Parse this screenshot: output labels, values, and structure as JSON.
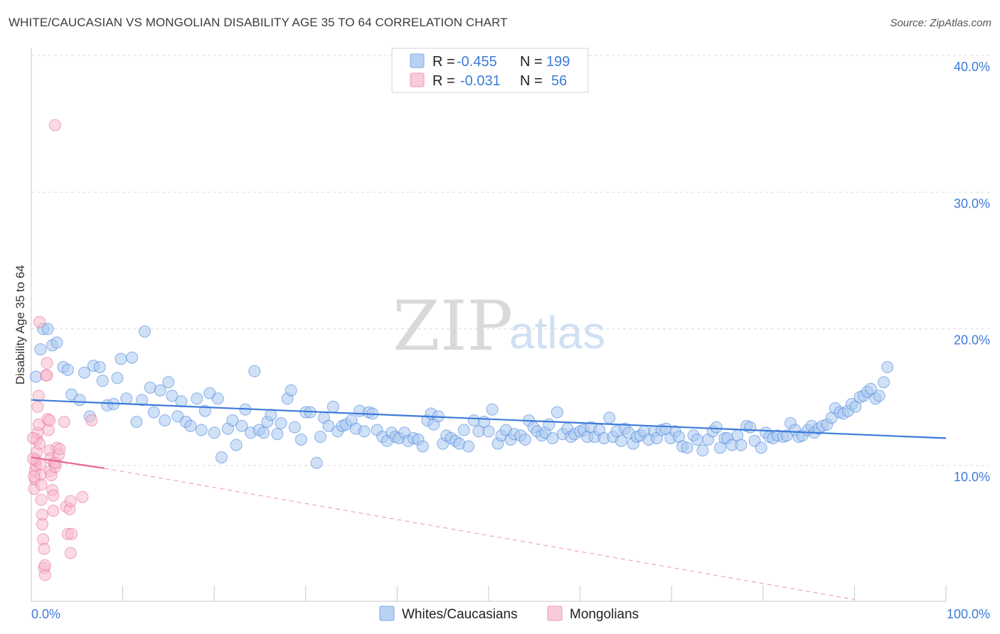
{
  "header": {
    "title": "WHITE/CAUCASIAN VS MONGOLIAN DISABILITY AGE 35 TO 64 CORRELATION CHART",
    "source": "Source: ZipAtlas.com"
  },
  "watermark": {
    "zip": "ZIP",
    "atlas": "atlas"
  },
  "legend": {
    "rows": [
      {
        "r_label": "R =",
        "r_value": "-0.455",
        "n_label": "N =",
        "n_value": "199",
        "color": "#8db4ea"
      },
      {
        "r_label": "R =",
        "r_value": "-0.031",
        "n_label": "N =",
        "n_value": "56",
        "color": "#f4a7bf"
      }
    ]
  },
  "bottom_legend": [
    {
      "label": "Whites/Caucasians",
      "color": "#8db4ea"
    },
    {
      "label": "Mongolians",
      "color": "#f4a7bf"
    }
  ],
  "chart_data": {
    "type": "scatter",
    "title": "WHITE/CAUCASIAN VS MONGOLIAN DISABILITY AGE 35 TO 64 CORRELATION CHART",
    "xlabel": "",
    "ylabel": "Disability Age 35 to 64",
    "xlim": [
      0,
      100
    ],
    "ylim": [
      0,
      40
    ],
    "x_tick_labels": [
      "0.0%",
      "100.0%"
    ],
    "y_ticks": [
      10,
      20,
      30,
      40
    ],
    "y_tick_labels": [
      "10.0%",
      "20.0%",
      "30.0%",
      "40.0%"
    ],
    "grid": true,
    "legend_position": "top-center",
    "series": [
      {
        "name": "Whites/Caucasians",
        "color": "#3d7bd8",
        "fill": "#a9c8f0",
        "r": -0.455,
        "n": 199,
        "trend": {
          "x0": 0,
          "y0": 14.8,
          "x1": 100,
          "y1": 12.0
        },
        "points": [
          [
            0.5,
            16.5
          ],
          [
            1.0,
            18.5
          ],
          [
            1.3,
            20.0
          ],
          [
            1.8,
            20.0
          ],
          [
            2.3,
            18.8
          ],
          [
            2.8,
            19.0
          ],
          [
            3.5,
            17.2
          ],
          [
            4.0,
            17.0
          ],
          [
            4.4,
            15.2
          ],
          [
            5.3,
            14.8
          ],
          [
            5.8,
            16.8
          ],
          [
            6.4,
            13.6
          ],
          [
            6.8,
            17.3
          ],
          [
            7.5,
            17.2
          ],
          [
            7.8,
            16.2
          ],
          [
            8.3,
            14.4
          ],
          [
            9.0,
            14.5
          ],
          [
            9.4,
            16.4
          ],
          [
            9.8,
            17.8
          ],
          [
            10.4,
            14.9
          ],
          [
            11.0,
            17.9
          ],
          [
            11.5,
            13.2
          ],
          [
            12.1,
            14.8
          ],
          [
            12.4,
            19.8
          ],
          [
            13.0,
            15.7
          ],
          [
            13.4,
            13.9
          ],
          [
            14.1,
            15.5
          ],
          [
            14.6,
            13.3
          ],
          [
            15.0,
            16.1
          ],
          [
            15.4,
            15.1
          ],
          [
            16.0,
            13.6
          ],
          [
            16.4,
            14.7
          ],
          [
            16.9,
            13.2
          ],
          [
            17.4,
            12.9
          ],
          [
            18.1,
            14.9
          ],
          [
            18.6,
            12.6
          ],
          [
            19.0,
            14.0
          ],
          [
            19.5,
            15.3
          ],
          [
            20.0,
            12.4
          ],
          [
            20.4,
            14.9
          ],
          [
            20.8,
            10.6
          ],
          [
            21.5,
            12.7
          ],
          [
            22.0,
            13.3
          ],
          [
            22.4,
            11.5
          ],
          [
            23.0,
            12.9
          ],
          [
            23.4,
            14.1
          ],
          [
            24.0,
            12.4
          ],
          [
            24.4,
            16.9
          ],
          [
            24.9,
            12.6
          ],
          [
            25.4,
            12.4
          ],
          [
            25.8,
            13.2
          ],
          [
            26.2,
            13.7
          ],
          [
            26.9,
            12.3
          ],
          [
            27.3,
            13.1
          ],
          [
            28.0,
            14.9
          ],
          [
            28.4,
            15.5
          ],
          [
            28.8,
            12.8
          ],
          [
            29.5,
            11.9
          ],
          [
            30.0,
            13.9
          ],
          [
            30.5,
            13.9
          ],
          [
            31.2,
            10.2
          ],
          [
            31.6,
            12.1
          ],
          [
            32.0,
            13.5
          ],
          [
            32.5,
            12.9
          ],
          [
            33.0,
            14.3
          ],
          [
            33.5,
            12.5
          ],
          [
            34.0,
            12.9
          ],
          [
            34.4,
            13.0
          ],
          [
            35.0,
            13.3
          ],
          [
            35.5,
            12.7
          ],
          [
            35.9,
            14.0
          ],
          [
            36.4,
            12.5
          ],
          [
            36.9,
            13.9
          ],
          [
            37.3,
            13.8
          ],
          [
            37.8,
            12.6
          ],
          [
            38.4,
            12.1
          ],
          [
            38.9,
            11.8
          ],
          [
            39.4,
            12.4
          ],
          [
            39.8,
            12.1
          ],
          [
            40.2,
            12.0
          ],
          [
            40.8,
            12.4
          ],
          [
            41.2,
            11.8
          ],
          [
            41.8,
            12.0
          ],
          [
            42.3,
            11.9
          ],
          [
            42.8,
            11.4
          ],
          [
            43.3,
            13.3
          ],
          [
            43.7,
            13.8
          ],
          [
            44.0,
            13.0
          ],
          [
            44.5,
            13.6
          ],
          [
            45.0,
            11.6
          ],
          [
            45.4,
            12.2
          ],
          [
            45.9,
            12.0
          ],
          [
            46.4,
            11.8
          ],
          [
            46.8,
            11.6
          ],
          [
            47.3,
            12.6
          ],
          [
            47.8,
            11.4
          ],
          [
            48.4,
            13.3
          ],
          [
            48.9,
            12.5
          ],
          [
            49.5,
            13.2
          ],
          [
            50.0,
            12.5
          ],
          [
            50.4,
            14.1
          ],
          [
            51.0,
            11.6
          ],
          [
            51.4,
            12.2
          ],
          [
            51.9,
            12.6
          ],
          [
            52.4,
            11.9
          ],
          [
            52.8,
            12.3
          ],
          [
            53.5,
            12.2
          ],
          [
            54.0,
            11.9
          ],
          [
            54.4,
            13.3
          ],
          [
            54.9,
            12.8
          ],
          [
            55.3,
            12.5
          ],
          [
            55.8,
            12.2
          ],
          [
            56.2,
            12.4
          ],
          [
            56.6,
            13.0
          ],
          [
            57.0,
            12.0
          ],
          [
            57.5,
            13.9
          ],
          [
            58.1,
            12.3
          ],
          [
            58.6,
            12.7
          ],
          [
            59.0,
            12.1
          ],
          [
            59.4,
            12.3
          ],
          [
            60.0,
            12.5
          ],
          [
            60.4,
            12.6
          ],
          [
            60.8,
            12.1
          ],
          [
            61.2,
            12.8
          ],
          [
            61.6,
            12.1
          ],
          [
            62.1,
            12.6
          ],
          [
            62.6,
            12.0
          ],
          [
            63.2,
            13.5
          ],
          [
            63.6,
            12.1
          ],
          [
            64.0,
            12.5
          ],
          [
            64.5,
            11.8
          ],
          [
            64.9,
            12.7
          ],
          [
            65.3,
            12.4
          ],
          [
            65.8,
            11.6
          ],
          [
            66.2,
            12.1
          ],
          [
            66.6,
            12.2
          ],
          [
            67.0,
            12.5
          ],
          [
            67.5,
            11.9
          ],
          [
            68.1,
            12.5
          ],
          [
            68.4,
            12.0
          ],
          [
            68.9,
            12.6
          ],
          [
            69.4,
            12.7
          ],
          [
            69.9,
            12.0
          ],
          [
            70.4,
            12.5
          ],
          [
            70.8,
            12.1
          ],
          [
            71.2,
            11.4
          ],
          [
            71.7,
            11.3
          ],
          [
            72.4,
            12.2
          ],
          [
            72.8,
            11.9
          ],
          [
            73.4,
            11.1
          ],
          [
            74.0,
            11.9
          ],
          [
            74.5,
            12.5
          ],
          [
            74.9,
            12.8
          ],
          [
            75.3,
            11.3
          ],
          [
            75.8,
            12.0
          ],
          [
            76.1,
            12.0
          ],
          [
            76.6,
            11.5
          ],
          [
            77.2,
            12.2
          ],
          [
            77.6,
            11.5
          ],
          [
            78.2,
            12.9
          ],
          [
            78.6,
            12.8
          ],
          [
            79.1,
            11.8
          ],
          [
            79.8,
            11.3
          ],
          [
            80.3,
            12.4
          ],
          [
            80.7,
            12.1
          ],
          [
            81.1,
            12.0
          ],
          [
            81.6,
            12.2
          ],
          [
            82.2,
            12.1
          ],
          [
            82.6,
            12.2
          ],
          [
            83.0,
            13.1
          ],
          [
            83.5,
            12.6
          ],
          [
            83.9,
            12.1
          ],
          [
            84.3,
            12.2
          ],
          [
            84.9,
            12.6
          ],
          [
            85.3,
            12.9
          ],
          [
            85.6,
            12.4
          ],
          [
            86.1,
            12.7
          ],
          [
            86.5,
            12.9
          ],
          [
            87.0,
            13.0
          ],
          [
            87.5,
            13.5
          ],
          [
            87.9,
            14.2
          ],
          [
            88.4,
            13.9
          ],
          [
            88.8,
            13.8
          ],
          [
            89.3,
            14.0
          ],
          [
            89.7,
            14.5
          ],
          [
            90.1,
            14.3
          ],
          [
            90.6,
            15.0
          ],
          [
            91.0,
            15.1
          ],
          [
            91.4,
            15.4
          ],
          [
            91.8,
            15.6
          ],
          [
            92.3,
            14.9
          ],
          [
            92.7,
            15.1
          ],
          [
            93.2,
            16.1
          ],
          [
            93.6,
            17.2
          ]
        ]
      },
      {
        "name": "Mongolians",
        "color": "#e8658e",
        "fill": "#f7bccd",
        "r": -0.031,
        "n": 56,
        "trend": {
          "x0": 0,
          "y0": 10.6,
          "x1": 8,
          "y1": 9.8
        },
        "trend_extension": {
          "x0": 8,
          "y0": 9.8,
          "x1": 90,
          "y1": 0.2
        },
        "points": [
          [
            0.3,
            8.3
          ],
          [
            0.4,
            9.0
          ],
          [
            0.4,
            9.6
          ],
          [
            0.5,
            10.0
          ],
          [
            0.5,
            10.4
          ],
          [
            0.6,
            11.0
          ],
          [
            0.6,
            11.9
          ],
          [
            0.7,
            12.4
          ],
          [
            0.7,
            14.3
          ],
          [
            0.8,
            15.1
          ],
          [
            0.8,
            13.0
          ],
          [
            0.9,
            20.5
          ],
          [
            0.9,
            11.6
          ],
          [
            1.0,
            10.1
          ],
          [
            1.0,
            9.3
          ],
          [
            1.1,
            8.6
          ],
          [
            1.1,
            7.5
          ],
          [
            1.2,
            6.4
          ],
          [
            1.2,
            5.7
          ],
          [
            1.3,
            4.6
          ],
          [
            1.4,
            3.9
          ],
          [
            1.4,
            2.5
          ],
          [
            1.5,
            2.0
          ],
          [
            1.5,
            2.7
          ],
          [
            1.6,
            16.6
          ],
          [
            1.7,
            17.5
          ],
          [
            1.7,
            16.6
          ],
          [
            1.8,
            13.4
          ],
          [
            1.9,
            12.6
          ],
          [
            2.0,
            13.3
          ],
          [
            2.0,
            11.1
          ],
          [
            2.1,
            10.5
          ],
          [
            2.1,
            9.6
          ],
          [
            2.2,
            9.3
          ],
          [
            2.3,
            8.2
          ],
          [
            2.4,
            6.7
          ],
          [
            2.4,
            7.8
          ],
          [
            2.5,
            10.2
          ],
          [
            2.6,
            9.9
          ],
          [
            2.7,
            10.2
          ],
          [
            2.8,
            11.3
          ],
          [
            3.0,
            10.8
          ],
          [
            3.1,
            11.2
          ],
          [
            0.2,
            12.0
          ],
          [
            0.2,
            10.5
          ],
          [
            0.3,
            9.2
          ],
          [
            3.6,
            13.2
          ],
          [
            3.8,
            7.0
          ],
          [
            4.2,
            6.8
          ],
          [
            4.3,
            7.4
          ],
          [
            4.0,
            5.0
          ],
          [
            4.4,
            5.0
          ],
          [
            4.3,
            3.6
          ],
          [
            5.6,
            7.7
          ],
          [
            6.6,
            13.3
          ],
          [
            2.6,
            34.9
          ]
        ]
      }
    ]
  }
}
